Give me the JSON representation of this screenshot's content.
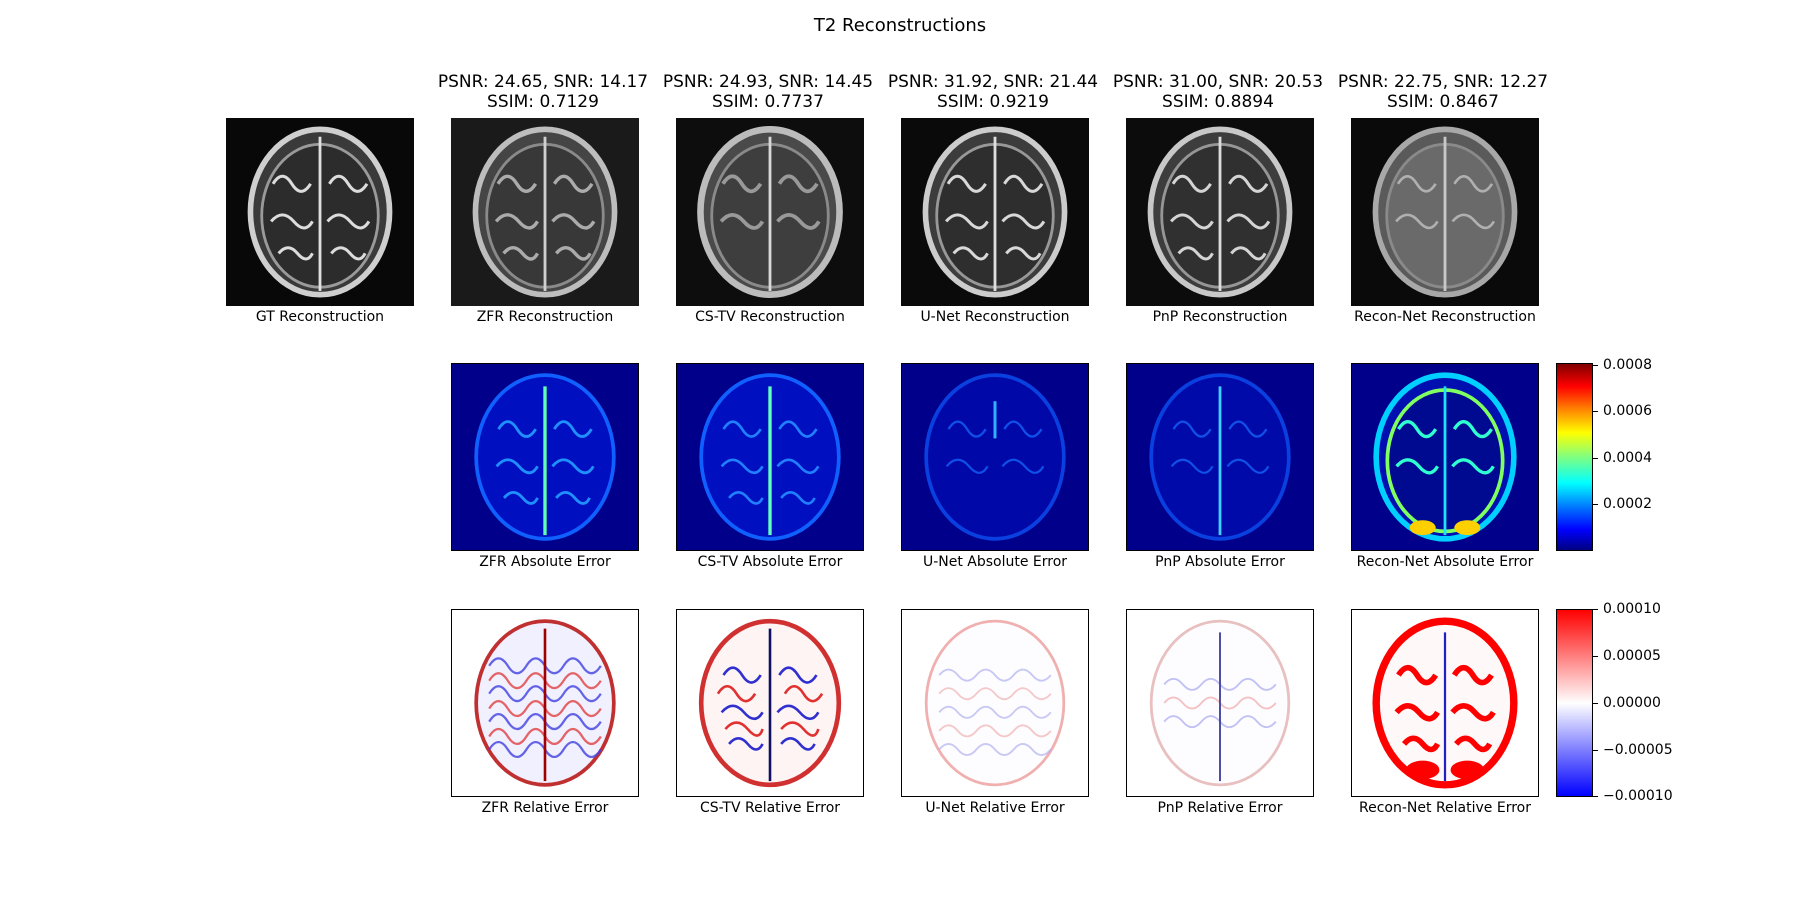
{
  "figure": {
    "title": "T2 Reconstructions"
  },
  "metrics": [
    {
      "line1": "PSNR: 24.65, SNR: 14.17",
      "line2": "SSIM: 0.7129"
    },
    {
      "line1": "PSNR: 24.93, SNR: 14.45",
      "line2": "SSIM: 0.7737"
    },
    {
      "line1": "PSNR: 31.92, SNR: 21.44",
      "line2": "SSIM: 0.9219"
    },
    {
      "line1": "PSNR: 31.00, SNR: 20.53",
      "line2": "SSIM: 0.8894"
    },
    {
      "line1": "PSNR: 22.75, SNR: 12.27",
      "line2": "SSIM: 0.8467"
    }
  ],
  "recon_captions": [
    "GT Reconstruction",
    "ZFR Reconstruction",
    "CS-TV Reconstruction",
    "U-Net Reconstruction",
    "PnP Reconstruction",
    "Recon-Net Reconstruction"
  ],
  "abs_captions": [
    "ZFR Absolute Error",
    "CS-TV Absolute Error",
    "U-Net Absolute Error",
    "PnP Absolute Error",
    "Recon-Net Absolute Error"
  ],
  "rel_captions": [
    "ZFR Relative Error",
    "CS-TV Relative Error",
    "U-Net Relative Error",
    "PnP Relative Error",
    "Recon-Net Relative Error"
  ],
  "colorbars": {
    "absolute": {
      "colormap": "jet",
      "min": 0,
      "max": 0.00082,
      "ticks": [
        "0.0008",
        "0.0006",
        "0.0004",
        "0.0002"
      ],
      "tick_values": [
        0.0008,
        0.0006,
        0.0004,
        0.0002
      ]
    },
    "relative": {
      "colormap": "bwr",
      "min": -0.0001,
      "max": 0.0001,
      "ticks": [
        "0.00010",
        "0.00005",
        "0.00000",
        "−0.00005",
        "−0.00010"
      ],
      "tick_values": [
        0.0001,
        5e-05,
        0,
        -5e-05,
        -0.0001
      ]
    }
  },
  "colors": {
    "recon_bg": "#000000",
    "abs_bg": "#00008b",
    "rel_bg": "#ffffff"
  }
}
